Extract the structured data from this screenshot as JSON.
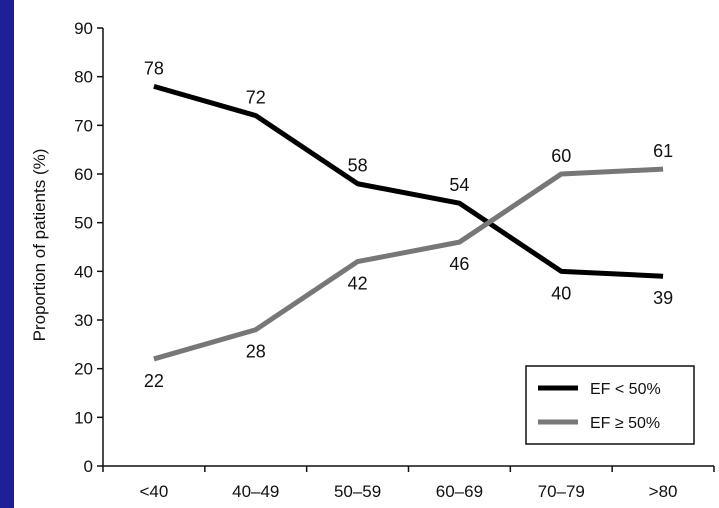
{
  "chart_data": {
    "type": "line",
    "categories": [
      "<40",
      "40–49",
      "50–59",
      "60–69",
      "70–79",
      ">80"
    ],
    "series": [
      {
        "name": "EF < 50%",
        "values": [
          78,
          72,
          58,
          54,
          40,
          39
        ],
        "color": "#000000"
      },
      {
        "name": "EF ≥ 50%",
        "values": [
          22,
          28,
          42,
          46,
          60,
          61
        ],
        "color": "#777777"
      }
    ],
    "ylabel": "Proportion of patients (%)",
    "xlabel": "",
    "ylim": [
      0,
      90
    ],
    "yticks": [
      0,
      10,
      20,
      30,
      40,
      50,
      60,
      70,
      80,
      90
    ],
    "legend_position": "bottom-right",
    "grid": false
  }
}
